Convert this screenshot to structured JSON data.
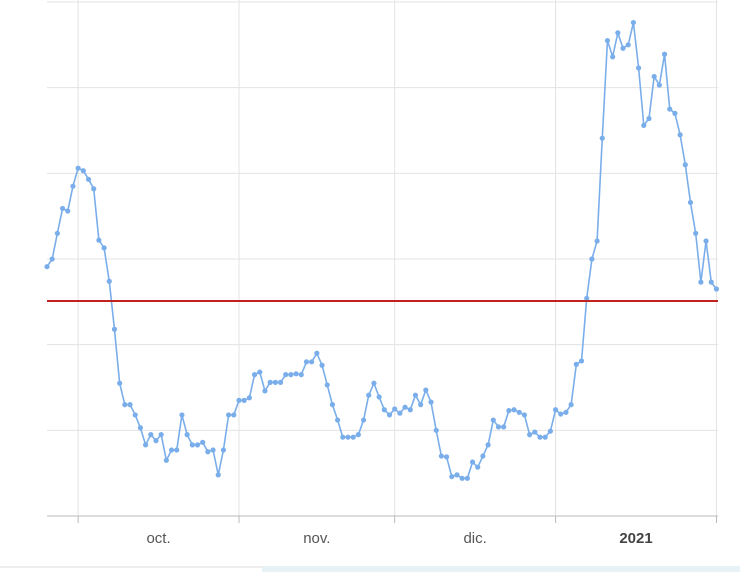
{
  "chart_data": {
    "type": "line",
    "color": "#7aaeea",
    "x": [
      -6,
      -5,
      -4,
      -3,
      -2,
      -1,
      0,
      1,
      2,
      3,
      4,
      5,
      6,
      7,
      8,
      9,
      10,
      11,
      12,
      13,
      14,
      15,
      16,
      17,
      18,
      19,
      20,
      21,
      22,
      23,
      24,
      25,
      26,
      27,
      28,
      29,
      30,
      31,
      32,
      33,
      34,
      35,
      36,
      37,
      38,
      39,
      40,
      41,
      42,
      43,
      44,
      45,
      46,
      47,
      48,
      49,
      50,
      51,
      52,
      53,
      54,
      55,
      56,
      57,
      58,
      59,
      60,
      61,
      62,
      63,
      64,
      65,
      66,
      67,
      68,
      69,
      70,
      71,
      72,
      73,
      74,
      75,
      76,
      77,
      78,
      79,
      80,
      81,
      82,
      83,
      84,
      85,
      86,
      87,
      88,
      89,
      90,
      91,
      92,
      93,
      94,
      95,
      96,
      97,
      98,
      99,
      100,
      101,
      102,
      103,
      104,
      105,
      106,
      107,
      108,
      109,
      110,
      111,
      112,
      113,
      114,
      115,
      116,
      117,
      118,
      119,
      120,
      121,
      122,
      123
    ],
    "values": [
      2.91,
      3.0,
      3.3,
      3.59,
      3.56,
      3.85,
      4.06,
      4.03,
      3.93,
      3.82,
      3.22,
      3.13,
      2.74,
      2.18,
      1.55,
      1.3,
      1.3,
      1.18,
      1.03,
      0.83,
      0.95,
      0.88,
      0.95,
      0.65,
      0.77,
      0.77,
      1.18,
      0.95,
      0.83,
      0.83,
      0.86,
      0.75,
      0.77,
      0.48,
      0.77,
      1.18,
      1.18,
      1.35,
      1.35,
      1.38,
      1.65,
      1.68,
      1.46,
      1.56,
      1.56,
      1.56,
      1.65,
      1.65,
      1.66,
      1.65,
      1.8,
      1.8,
      1.9,
      1.76,
      1.53,
      1.3,
      1.12,
      0.92,
      0.92,
      0.92,
      0.95,
      1.12,
      1.41,
      1.55,
      1.39,
      1.24,
      1.18,
      1.25,
      1.2,
      1.27,
      1.24,
      1.41,
      1.3,
      1.47,
      1.33,
      1.0,
      0.7,
      0.69,
      0.46,
      0.48,
      0.44,
      0.44,
      0.63,
      0.57,
      0.7,
      0.83,
      1.12,
      1.04,
      1.04,
      1.23,
      1.24,
      1.21,
      1.18,
      0.95,
      0.98,
      0.92,
      0.92,
      0.99,
      1.24,
      1.19,
      1.21,
      1.3,
      1.77,
      1.81,
      2.54,
      3.0,
      3.21,
      4.41,
      5.55,
      5.36,
      5.64,
      5.46,
      5.5,
      5.76,
      5.23,
      4.56,
      4.64,
      5.13,
      5.03,
      5.39,
      4.75,
      4.7,
      4.45,
      4.1,
      3.66,
      3.3,
      2.73,
      3.21,
      2.73,
      2.65
    ],
    "xlim": [
      -6,
      123.3
    ],
    "ylim": [
      0,
      6
    ],
    "xticks": [
      0,
      31,
      61,
      92,
      123
    ],
    "x_labels": [
      {
        "value": 15.5,
        "label": "oct."
      },
      {
        "value": 46,
        "label": "nov."
      },
      {
        "value": 76.5,
        "label": "dic."
      },
      {
        "value": 107.5,
        "label": "2021",
        "bold": true
      }
    ],
    "ygrid": [
      1,
      2,
      3,
      4,
      5,
      6
    ],
    "reference_line": {
      "value": 2.51,
      "color": "#c0221e"
    },
    "grid": true
  }
}
